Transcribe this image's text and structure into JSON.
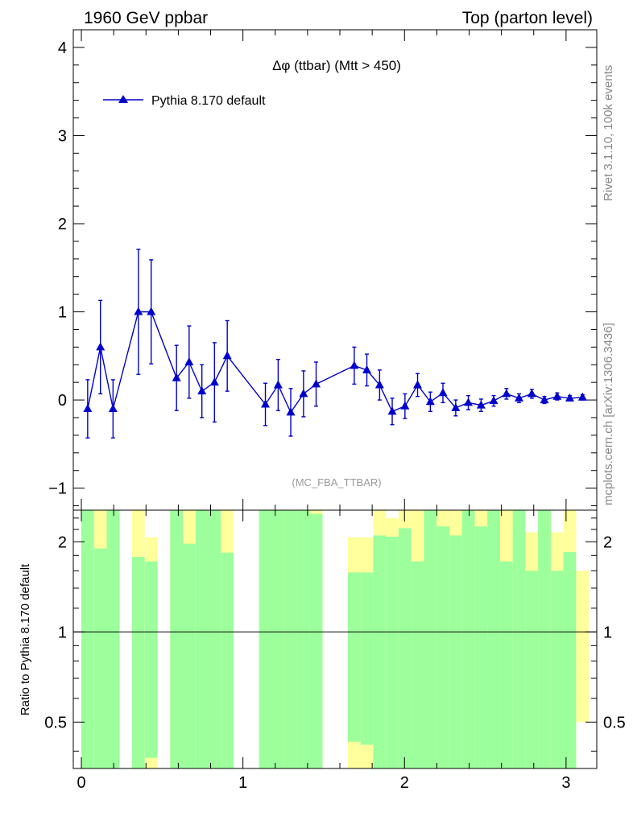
{
  "header": {
    "left": "1960 GeV ppbar",
    "right": "Top (parton level)"
  },
  "side_labels": {
    "rivet": "Rivet 3.1.10,  100k events",
    "mcplots": "mcplots.cern.ch [arXiv:1306.3436]"
  },
  "chart_data": [
    {
      "type": "line",
      "title": "Δφ (ttbar) (Mtt > 450)",
      "watermark": "(MC_FBA_TTBAR)",
      "xlim": [
        -0.05,
        3.19
      ],
      "ylim": [
        -1.25,
        4.2
      ],
      "yticks": [
        -1,
        0,
        1,
        2,
        3,
        4
      ],
      "ytick_labels": [
        "−1",
        "0",
        "1",
        "2",
        "3",
        "4"
      ],
      "legend": {
        "position": "top-left",
        "entries": [
          "Pythia 8.170 default"
        ]
      },
      "series": [
        {
          "name": "Pythia 8.170 default",
          "color": "#0000cc",
          "marker": "triangle",
          "x": [
            0.039,
            0.118,
            0.196,
            0.353,
            0.432,
            0.589,
            0.667,
            0.746,
            0.824,
            0.903,
            1.139,
            1.218,
            1.296,
            1.375,
            1.453,
            1.689,
            1.767,
            1.846,
            1.924,
            2.003,
            2.081,
            2.16,
            2.238,
            2.317,
            2.395,
            2.474,
            2.552,
            2.631,
            2.709,
            2.788,
            2.866,
            2.945,
            3.023,
            3.102
          ],
          "y": [
            -0.1,
            0.6,
            -0.1,
            1.0,
            1.0,
            0.25,
            0.43,
            0.1,
            0.2,
            0.5,
            -0.05,
            0.17,
            -0.14,
            0.07,
            0.18,
            0.39,
            0.34,
            0.17,
            -0.13,
            -0.07,
            0.17,
            -0.02,
            0.08,
            -0.09,
            -0.03,
            -0.06,
            -0.01,
            0.07,
            0.02,
            0.07,
            0.0,
            0.04,
            0.02,
            0.03
          ],
          "err": [
            0.33,
            0.53,
            0.33,
            0.71,
            0.59,
            0.37,
            0.41,
            0.3,
            0.45,
            0.4,
            0.24,
            0.29,
            0.27,
            0.26,
            0.25,
            0.21,
            0.18,
            0.17,
            0.15,
            0.14,
            0.13,
            0.11,
            0.11,
            0.09,
            0.08,
            0.07,
            0.06,
            0.06,
            0.05,
            0.05,
            0.04,
            0.04,
            0.03,
            0.03
          ]
        }
      ]
    },
    {
      "type": "bar",
      "ylabel": "Ratio to Pythia 8.170 default",
      "xlim": [
        -0.05,
        3.19
      ],
      "ylim": [
        0.35,
        2.55
      ],
      "yscale": "log",
      "yticks": [
        0.5,
        1,
        2
      ],
      "ytick_labels": [
        "0.5",
        "1",
        "2"
      ],
      "xticks": [
        0,
        1,
        2,
        3
      ],
      "xtick_labels": [
        "0",
        "1",
        "2",
        "3"
      ],
      "reference_line": 1,
      "band_colors": {
        "inner": "#9cff9c",
        "outer": "#ffff9c"
      },
      "bands": [
        {
          "x": 0.039,
          "green": [
            0.3,
            3.0
          ],
          "yellow": [
            0.3,
            3.0
          ]
        },
        {
          "x": 0.118,
          "green": [
            0.3,
            1.9
          ],
          "yellow": [
            0.3,
            3.0
          ]
        },
        {
          "x": 0.196,
          "green": [
            0.3,
            3.0
          ],
          "yellow": [
            0.3,
            3.0
          ]
        },
        {
          "x": 0.353,
          "green": [
            0.3,
            1.78
          ],
          "yellow": [
            0.3,
            3.0
          ]
        },
        {
          "x": 0.432,
          "green": [
            0.38,
            1.72
          ],
          "yellow": [
            0.3,
            2.07
          ]
        },
        {
          "x": 0.589,
          "green": [
            0.3,
            3.0
          ],
          "yellow": [
            0.3,
            3.0
          ]
        },
        {
          "x": 0.667,
          "green": [
            0.3,
            1.97
          ],
          "yellow": [
            0.3,
            3.0
          ]
        },
        {
          "x": 0.746,
          "green": [
            0.3,
            3.0
          ],
          "yellow": [
            0.3,
            3.0
          ]
        },
        {
          "x": 0.824,
          "green": [
            0.3,
            3.0
          ],
          "yellow": [
            0.3,
            3.0
          ]
        },
        {
          "x": 0.903,
          "green": [
            0.3,
            1.84
          ],
          "yellow": [
            0.3,
            3.0
          ]
        },
        {
          "x": 1.139,
          "green": [
            0.3,
            3.0
          ],
          "yellow": [
            0.3,
            3.0
          ]
        },
        {
          "x": 1.218,
          "green": [
            0.3,
            3.0
          ],
          "yellow": [
            0.3,
            3.0
          ]
        },
        {
          "x": 1.296,
          "green": [
            0.3,
            3.0
          ],
          "yellow": [
            0.3,
            3.0
          ]
        },
        {
          "x": 1.375,
          "green": [
            0.3,
            3.0
          ],
          "yellow": [
            0.3,
            3.0
          ]
        },
        {
          "x": 1.453,
          "green": [
            0.3,
            2.48
          ],
          "yellow": [
            0.3,
            3.0
          ]
        },
        {
          "x": 1.689,
          "green": [
            0.43,
            1.58
          ],
          "yellow": [
            0.3,
            2.07
          ]
        },
        {
          "x": 1.767,
          "green": [
            0.42,
            1.58
          ],
          "yellow": [
            0.3,
            2.07
          ]
        },
        {
          "x": 1.846,
          "green": [
            0.3,
            2.1
          ],
          "yellow": [
            0.3,
            3.0
          ]
        },
        {
          "x": 1.924,
          "green": [
            0.3,
            2.08
          ],
          "yellow": [
            0.3,
            2.4
          ]
        },
        {
          "x": 2.003,
          "green": [
            0.3,
            2.22
          ],
          "yellow": [
            0.3,
            3.0
          ]
        },
        {
          "x": 2.081,
          "green": [
            0.3,
            1.72
          ],
          "yellow": [
            0.3,
            3.0
          ]
        },
        {
          "x": 2.16,
          "green": [
            0.3,
            3.0
          ],
          "yellow": [
            0.3,
            3.0
          ]
        },
        {
          "x": 2.238,
          "green": [
            0.3,
            2.25
          ],
          "yellow": [
            0.3,
            3.0
          ]
        },
        {
          "x": 2.317,
          "green": [
            0.3,
            2.1
          ],
          "yellow": [
            0.3,
            3.0
          ]
        },
        {
          "x": 2.395,
          "green": [
            0.3,
            3.0
          ],
          "yellow": [
            0.3,
            3.0
          ]
        },
        {
          "x": 2.474,
          "green": [
            0.3,
            2.25
          ],
          "yellow": [
            0.3,
            3.0
          ]
        },
        {
          "x": 2.552,
          "green": [
            0.3,
            3.0
          ],
          "yellow": [
            0.3,
            3.0
          ]
        },
        {
          "x": 2.631,
          "green": [
            0.3,
            1.72
          ],
          "yellow": [
            0.3,
            3.0
          ]
        },
        {
          "x": 2.709,
          "green": [
            0.3,
            3.0
          ],
          "yellow": [
            0.3,
            3.0
          ]
        },
        {
          "x": 2.788,
          "green": [
            0.3,
            1.6
          ],
          "yellow": [
            0.38,
            2.15
          ]
        },
        {
          "x": 2.866,
          "green": [
            0.3,
            3.0
          ],
          "yellow": [
            0.3,
            3.0
          ]
        },
        {
          "x": 2.945,
          "green": [
            0.3,
            1.6
          ],
          "yellow": [
            0.38,
            2.15
          ]
        },
        {
          "x": 3.023,
          "green": [
            0.3,
            1.85
          ],
          "yellow": [
            0.3,
            3.0
          ]
        },
        {
          "x": 3.102,
          "green": [
            0.3,
            0.3
          ],
          "yellow": [
            0.5,
            1.6
          ]
        }
      ]
    }
  ]
}
